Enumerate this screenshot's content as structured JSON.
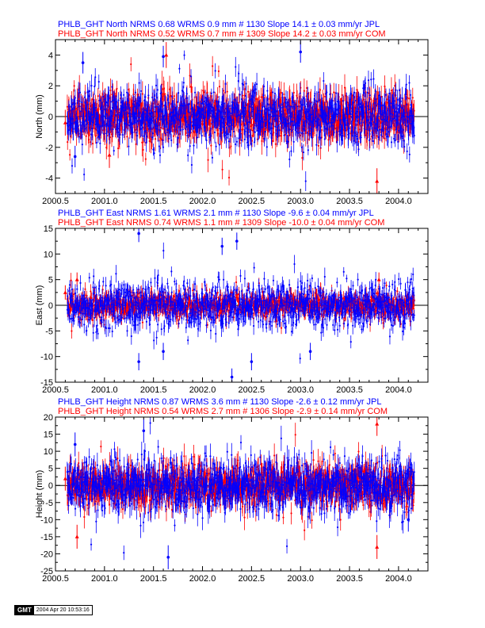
{
  "colors": {
    "jpl": "#0000ff",
    "com": "#ff0000",
    "axis": "#000000"
  },
  "stamp": {
    "logo": "GMT",
    "time": "2004 Apr 20 10:53:16"
  },
  "chart_data": [
    {
      "type": "scatter",
      "component": "North",
      "title_lines": [
        "PHLB_GHT North NRMS 0.68 WRMS  0.9 mm # 1130 Slope   14.1 ±  0.03 mm/yr JPL",
        "PHLB_GHT North NRMS 0.52 WRMS  0.7 mm # 1309 Slope   14.2 ±  0.03 mm/yr COM"
      ],
      "ylabel": "North (mm)",
      "xlim": [
        2000.5,
        2004.3
      ],
      "ylim": [
        -5,
        5
      ],
      "xticks": [
        "2000.5",
        "2001.0",
        "2001.5",
        "2002.0",
        "2002.5",
        "2003.0",
        "2003.5",
        "2004.0"
      ],
      "yticks": [
        "-4",
        "-2",
        "0",
        "2",
        "4"
      ],
      "data_start": 2000.62,
      "data_end": 2004.16,
      "series": [
        {
          "name": "JPL",
          "n": 1130,
          "wrms_mm": 0.9,
          "errorbar_mm": 0.5,
          "outliers": [
            [
              2000.78,
              3.5
            ],
            [
              2001.6,
              3.9
            ],
            [
              2003.0,
              4.2
            ],
            [
              2000.7,
              -2.6
            ]
          ]
        },
        {
          "name": "COM",
          "n": 1309,
          "wrms_mm": 0.7,
          "errorbar_mm": 0.6,
          "outliers": [
            [
              2001.63,
              4.0
            ],
            [
              2003.78,
              -4.2
            ],
            [
              2001.05,
              -2.5
            ],
            [
              2000.6,
              -0.4
            ]
          ]
        }
      ],
      "zero_line": 0
    },
    {
      "type": "scatter",
      "component": "East",
      "title_lines": [
        "PHLB_GHT East NRMS 1.61 WRMS  2.1 mm # 1130 Slope   -9.6 ±  0.04 mm/yr JPL",
        "PHLB_GHT East NRMS 0.74 WRMS  1.1 mm # 1309 Slope  -10.0 ±  0.04 mm/yr COM"
      ],
      "ylabel": "East (mm)",
      "xlim": [
        2000.5,
        2004.3
      ],
      "ylim": [
        -15,
        15
      ],
      "xticks": [
        "2000.5",
        "2001.0",
        "2001.5",
        "2002.0",
        "2002.5",
        "2003.0",
        "2003.5",
        "2004.0"
      ],
      "yticks": [
        "-15",
        "-10",
        "-5",
        "0",
        "5",
        "10",
        "15"
      ],
      "data_start": 2000.62,
      "data_end": 2004.16,
      "series": [
        {
          "name": "JPL",
          "n": 1130,
          "wrms_mm": 2.1,
          "errorbar_mm": 1.2,
          "outliers": [
            [
              2001.35,
              14.0
            ],
            [
              2002.2,
              11.5
            ],
            [
              2002.35,
              12.5
            ],
            [
              2001.35,
              -11.0
            ],
            [
              2002.3,
              -14.0
            ],
            [
              2002.5,
              -11.0
            ],
            [
              2003.1,
              -9.0
            ],
            [
              2001.6,
              -9.0
            ]
          ]
        },
        {
          "name": "COM",
          "n": 1309,
          "wrms_mm": 1.1,
          "errorbar_mm": 1.0,
          "outliers": [
            [
              2000.6,
              2.5
            ],
            [
              2000.72,
              5.0
            ],
            [
              2002.75,
              -3.0
            ],
            [
              2003.8,
              5.0
            ]
          ]
        }
      ],
      "zero_line": 0
    },
    {
      "type": "scatter",
      "component": "Height",
      "title_lines": [
        "PHLB_GHT Height NRMS 0.87 WRMS  3.6 mm # 1130 Slope   -2.6 ±  0.12 mm/yr JPL",
        "PHLB_GHT Height NRMS 0.54 WRMS  2.7 mm # 1306 Slope   -2.9 ±  0.14 mm/yr COM"
      ],
      "ylabel": "Height (mm)",
      "xlim": [
        2000.5,
        2004.3
      ],
      "ylim": [
        -25,
        20
      ],
      "xticks": [
        "2000.5",
        "2001.0",
        "2001.5",
        "2002.0",
        "2002.5",
        "2003.0",
        "2003.5",
        "2004.0"
      ],
      "yticks": [
        "-25",
        "-20",
        "-15",
        "-10",
        "-5",
        "0",
        "5",
        "10",
        "15",
        "20"
      ],
      "data_start": 2000.62,
      "data_end": 2004.16,
      "series": [
        {
          "name": "JPL",
          "n": 1130,
          "wrms_mm": 3.6,
          "errorbar_mm": 2.5,
          "outliers": [
            [
              2001.4,
              16.0
            ],
            [
              2001.65,
              -21.0
            ],
            [
              2000.7,
              12.0
            ],
            [
              2004.1,
              -10.0
            ]
          ]
        },
        {
          "name": "COM",
          "n": 1306,
          "wrms_mm": 2.7,
          "errorbar_mm": 2.5,
          "outliers": [
            [
              2000.6,
              2.0
            ],
            [
              2003.78,
              -18.0
            ],
            [
              2003.78,
              18.0
            ],
            [
              2000.72,
              -15.0
            ]
          ]
        }
      ],
      "zero_line": 0
    }
  ]
}
